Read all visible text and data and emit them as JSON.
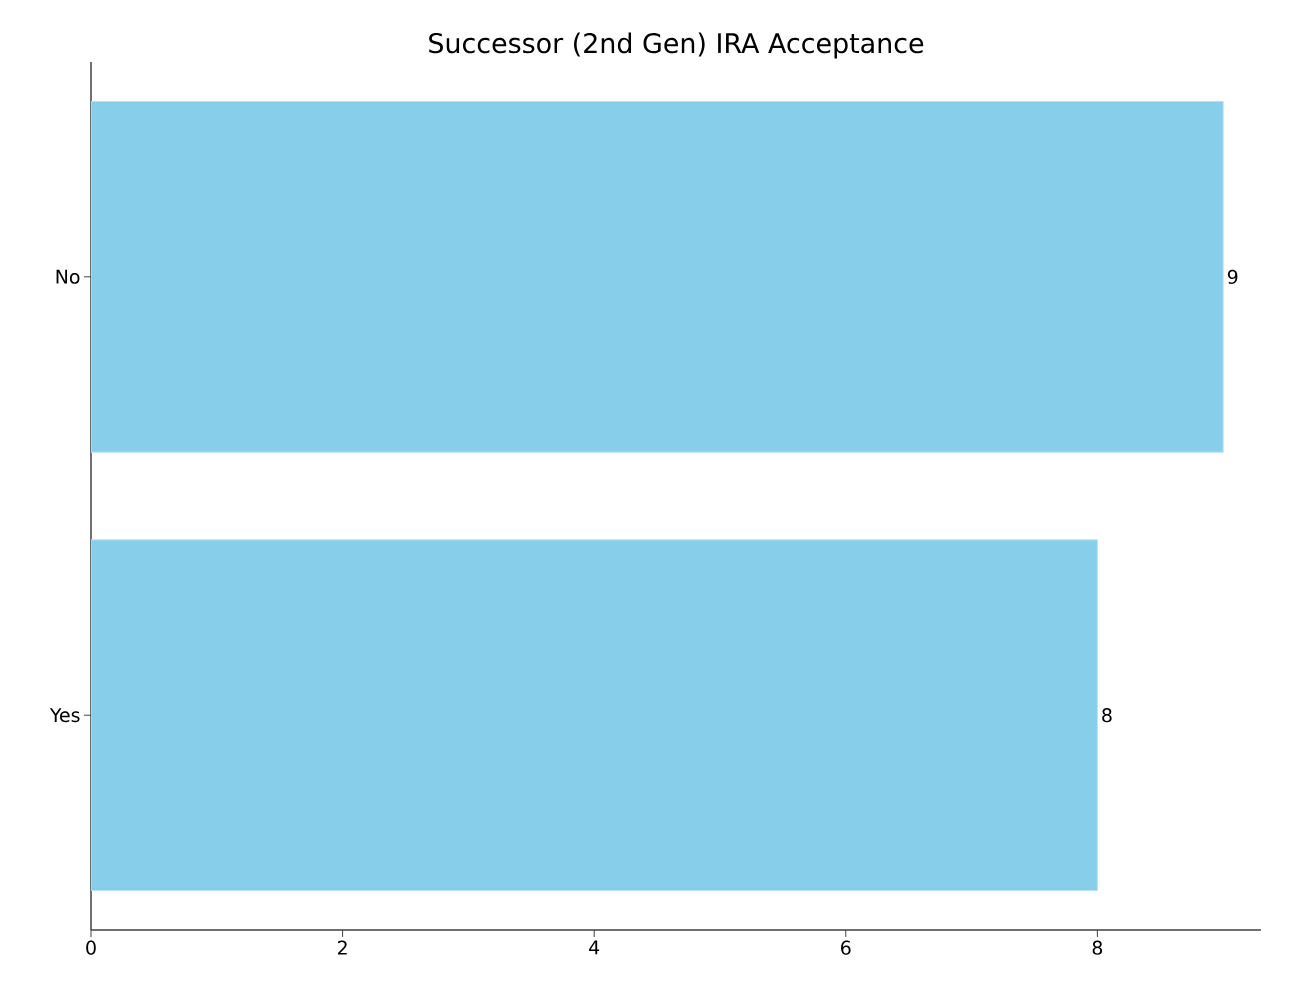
{
  "chart_data": {
    "type": "bar",
    "orientation": "horizontal",
    "title": "Successor (2nd Gen) IRA Acceptance",
    "categories": [
      "No",
      "Yes"
    ],
    "values": [
      9,
      8
    ],
    "color": "#87ceeb",
    "data_labels": true,
    "xlim": [
      0,
      9.3
    ],
    "xticks": [
      0,
      2,
      4,
      6,
      8
    ]
  }
}
